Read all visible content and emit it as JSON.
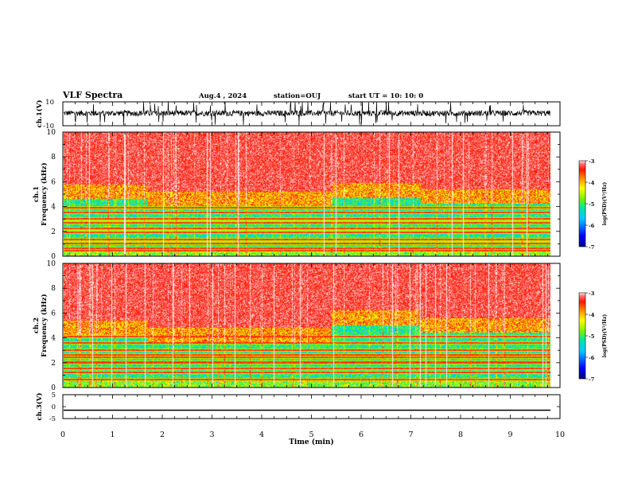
{
  "header": {
    "title": "VLF Spectra",
    "date": "Aug.4  , 2024",
    "station": "station=OUJ",
    "start": "start  UT  =   10: 10: 0"
  },
  "chart_data": [
    {
      "type": "line",
      "panel": "ch1-waveform",
      "ylabel": "ch.1(V)",
      "ylim": [
        -10,
        10
      ],
      "yticks": [
        "10",
        "-10"
      ],
      "xlim": [
        0,
        10
      ],
      "description_values": {
        "approx_center": 0.5,
        "approx_envelope": 4
      }
    },
    {
      "type": "heatmap",
      "panel": "ch1-spectrogram",
      "ylabel": "ch.1\nFrequency  (kHz)",
      "ylim": [
        0,
        10
      ],
      "yticks": [
        "0",
        "2",
        "4",
        "6",
        "8",
        "10"
      ],
      "xlim": [
        0,
        9.83
      ],
      "colorbar": {
        "label": "log(PSD)(V²/Hz)",
        "ticks": [
          "-3",
          "-4",
          "-5",
          "-6",
          "-7"
        ],
        "range": [
          -7,
          -3
        ]
      },
      "segments": [
        {
          "t": [
            0,
            1.7
          ],
          "band_top_khz": 4.6
        },
        {
          "t": [
            1.7,
            5.4
          ],
          "band_top_khz": 4.0
        },
        {
          "t": [
            5.4,
            7.2
          ],
          "band_top_khz": 4.7
        },
        {
          "t": [
            7.2,
            9.83
          ],
          "band_top_khz": 4.2
        }
      ],
      "lines_khz": [
        0.4,
        0.6,
        1.0,
        1.3,
        1.9,
        2.2,
        2.7,
        3.0,
        3.5,
        3.9
      ]
    },
    {
      "type": "heatmap",
      "panel": "ch2-spectrogram",
      "ylabel": "ch.2\nFrequency  (kHz)",
      "ylim": [
        0,
        10
      ],
      "yticks": [
        "0",
        "2",
        "4",
        "6",
        "8",
        "10"
      ],
      "xlim": [
        0,
        9.83
      ],
      "colorbar": {
        "label": "log(PSD)(V²/Hz)",
        "ticks": [
          "-3",
          "-4",
          "-5",
          "-6",
          "-7"
        ],
        "range": [
          -7,
          -3
        ]
      },
      "segments": [
        {
          "t": [
            0,
            1.7
          ],
          "band_top_khz": 4.2
        },
        {
          "t": [
            1.7,
            5.4
          ],
          "band_top_khz": 3.6
        },
        {
          "t": [
            5.4,
            7.2
          ],
          "band_top_khz": 5.0
        },
        {
          "t": [
            7.2,
            9.83
          ],
          "band_top_khz": 4.4
        }
      ],
      "lines_khz": [
        0.6,
        1.2,
        1.5,
        2.0,
        2.4,
        2.6,
        3.0,
        3.6,
        4.1
      ]
    },
    {
      "type": "line",
      "panel": "ch3-waveform",
      "ylabel": "ch.3(V)",
      "ylim": [
        -5,
        5
      ],
      "yticks": [
        "5",
        "0",
        "-5"
      ],
      "xlim": [
        0,
        10
      ],
      "constant_value": -1.5
    }
  ],
  "xaxis": {
    "label": "Time  (min)",
    "ticks": [
      "0",
      "1",
      "2",
      "3",
      "4",
      "5",
      "6",
      "7",
      "8",
      "9",
      "10"
    ]
  }
}
